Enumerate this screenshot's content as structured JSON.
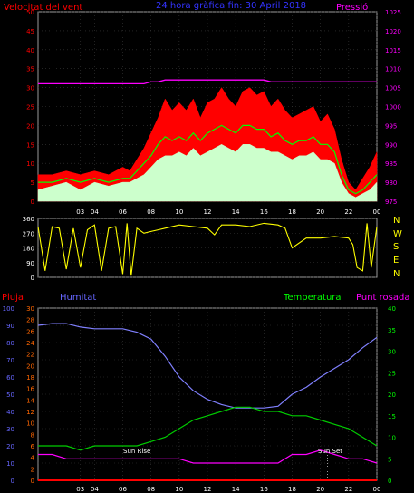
{
  "header": {
    "left_label": "Velocitat del vent",
    "title": "24 hora gràfica fin:  30 April 2018",
    "right_label": "Pressió"
  },
  "bottom_header": {
    "rain": "Pluja",
    "humidity": "Humitat",
    "temperature": "Temperatura",
    "dewpoint": "Punt rosada"
  },
  "compass_labels": [
    "N",
    "W",
    "S",
    "E",
    "N"
  ],
  "annotations": {
    "sunrise": "Sun Rise",
    "sunset": "Sun Set"
  },
  "colors": {
    "wind_gust": "#ff0000",
    "wind_avg": "#00ff00",
    "wind_speed": "#ccffcc",
    "pressure": "#ff00ff",
    "direction": "#ffff00",
    "rain": "#ff0000",
    "humidity": "#8080ff",
    "temperature": "#00cc00",
    "dewpoint": "#ff00ff",
    "axis_left": "#ff0000",
    "axis_right": "#ff00ff",
    "axis_green": "#00ff00",
    "axis_blue": "#6666ff",
    "axis_orange": "#ff6600"
  },
  "chart_data": [
    {
      "type": "area",
      "title": "24 hora gràfica fin:  30 April 2018",
      "x_ticks": [
        "03",
        "04",
        "06",
        "08",
        "10",
        "12",
        "14",
        "16",
        "18",
        "20",
        "22",
        "00"
      ],
      "y_left_label": "Velocitat del vent",
      "y_left_ticks": [
        0,
        5,
        10,
        15,
        20,
        25,
        30,
        35,
        40,
        45,
        50
      ],
      "ylim_left": [
        0,
        50
      ],
      "y_right_label": "Pressió",
      "y_right_ticks": [
        975,
        980,
        985,
        990,
        995,
        1000,
        1005,
        1010,
        1015,
        1020,
        1025
      ],
      "ylim_right": [
        975,
        1025
      ],
      "x_hours": [
        0,
        1,
        2,
        3,
        4,
        5,
        6,
        6.5,
        7,
        7.5,
        8,
        8.5,
        9,
        9.5,
        10,
        10.5,
        11,
        11.5,
        12,
        12.5,
        13,
        13.5,
        14,
        14.5,
        15,
        15.5,
        16,
        16.5,
        17,
        17.5,
        18,
        18.5,
        19,
        19.5,
        20,
        20.5,
        21,
        21.5,
        22,
        22.5,
        23,
        23.5,
        24
      ],
      "series": [
        {
          "key": "gust",
          "values": [
            7,
            7,
            8,
            7,
            8,
            7,
            9,
            8,
            11,
            14,
            18,
            22,
            27,
            24,
            26,
            24,
            27,
            22,
            26,
            27,
            30,
            27,
            25,
            29,
            30,
            28,
            29,
            25,
            27,
            24,
            22,
            23,
            24,
            25,
            21,
            23,
            19,
            11,
            5,
            3,
            6,
            9,
            13
          ]
        },
        {
          "key": "avg",
          "values": [
            5,
            5,
            6,
            5,
            6,
            5,
            6,
            6,
            8,
            10,
            12,
            15,
            17,
            16,
            17,
            16,
            18,
            16,
            18,
            19,
            20,
            19,
            18,
            20,
            20,
            19,
            19,
            17,
            18,
            16,
            15,
            16,
            16,
            17,
            15,
            15,
            13,
            7,
            3,
            2,
            3,
            5,
            7
          ]
        },
        {
          "key": "speed",
          "values": [
            3,
            4,
            5,
            3,
            5,
            4,
            5,
            5,
            6,
            7,
            9,
            11,
            12,
            12,
            13,
            12,
            14,
            12,
            13,
            14,
            15,
            14,
            13,
            15,
            15,
            14,
            14,
            13,
            13,
            12,
            11,
            12,
            12,
            13,
            11,
            11,
            10,
            5,
            2,
            1,
            2,
            3,
            5
          ]
        },
        {
          "key": "pressure",
          "values": [
            1006,
            1006,
            1006,
            1006,
            1006,
            1006,
            1006,
            1006,
            1006,
            1006,
            1006.5,
            1006.5,
            1007,
            1007,
            1007,
            1007,
            1007,
            1007,
            1007,
            1007,
            1007,
            1007,
            1007,
            1007,
            1007,
            1007,
            1007,
            1006.5,
            1006.5,
            1006.5,
            1006.5,
            1006.5,
            1006.5,
            1006.5,
            1006.5,
            1006.5,
            1006.5,
            1006.5,
            1006.5,
            1006.5,
            1006.5,
            1006.5,
            1006.5
          ]
        }
      ]
    },
    {
      "type": "line",
      "y_ticks": [
        0,
        90,
        180,
        270,
        360
      ],
      "ylim": [
        0,
        360
      ],
      "x_hours": [
        0,
        0.5,
        1,
        1.5,
        2,
        2.5,
        3,
        3.5,
        4,
        4.5,
        5,
        5.5,
        6,
        6.3,
        6.6,
        7,
        7.5,
        8,
        8.5,
        9,
        10,
        11,
        12,
        12.5,
        13,
        14,
        15,
        16,
        17,
        17.5,
        18,
        19,
        20,
        21,
        22,
        22.3,
        22.6,
        23,
        23.3,
        23.6,
        24
      ],
      "values": [
        310,
        40,
        310,
        300,
        50,
        300,
        60,
        290,
        320,
        40,
        300,
        310,
        20,
        330,
        10,
        300,
        270,
        280,
        290,
        300,
        320,
        310,
        300,
        260,
        320,
        320,
        310,
        330,
        320,
        300,
        180,
        240,
        240,
        250,
        240,
        200,
        60,
        40,
        330,
        60,
        310
      ]
    },
    {
      "type": "line",
      "x_ticks": [
        "03",
        "04",
        "06",
        "08",
        "10",
        "12",
        "14",
        "16",
        "18",
        "20",
        "22",
        "00"
      ],
      "y_rain_ticks": [
        0,
        2,
        4,
        6,
        8,
        10,
        12,
        14,
        16,
        18,
        20,
        22,
        24,
        26,
        28,
        30
      ],
      "y_humidity_ticks": [
        0,
        10,
        20,
        30,
        40,
        50,
        60,
        70,
        80,
        90,
        100
      ],
      "y_temp_ticks": [
        0,
        5,
        10,
        15,
        20,
        25,
        30,
        35,
        40
      ],
      "ylim_humidity": [
        0,
        100
      ],
      "ylim_temp": [
        0,
        40
      ],
      "x_hours": [
        0,
        1,
        2,
        3,
        4,
        5,
        6,
        7,
        8,
        9,
        10,
        11,
        12,
        13,
        14,
        15,
        16,
        17,
        18,
        19,
        20,
        21,
        22,
        23,
        24
      ],
      "series": [
        {
          "key": "humidity",
          "name": "Humitat",
          "values": [
            90,
            91,
            91,
            89,
            88,
            88,
            88,
            86,
            82,
            72,
            60,
            52,
            47,
            44,
            42,
            42,
            42,
            43,
            50,
            54,
            60,
            65,
            70,
            77,
            83
          ]
        },
        {
          "key": "temperature",
          "name": "Temperatura",
          "values": [
            8,
            8,
            8,
            7,
            8,
            8,
            8,
            8,
            9,
            10,
            12,
            14,
            15,
            16,
            17,
            17,
            16,
            16,
            15,
            15,
            14,
            13,
            12,
            10,
            8
          ]
        },
        {
          "key": "dewpoint",
          "name": "Punt rosada",
          "values": [
            6,
            6,
            5,
            5,
            5,
            5,
            5,
            5,
            5,
            5,
            5,
            4,
            4,
            4,
            4,
            4,
            4,
            4,
            6,
            6,
            7,
            6,
            5,
            5,
            4
          ]
        },
        {
          "key": "rain",
          "name": "Pluja",
          "values": [
            0,
            0,
            0,
            0,
            0,
            0,
            0,
            0,
            0,
            0,
            0,
            0,
            0,
            0,
            0,
            0,
            0,
            0,
            0,
            0,
            0,
            0,
            0,
            0,
            0
          ]
        }
      ]
    }
  ]
}
